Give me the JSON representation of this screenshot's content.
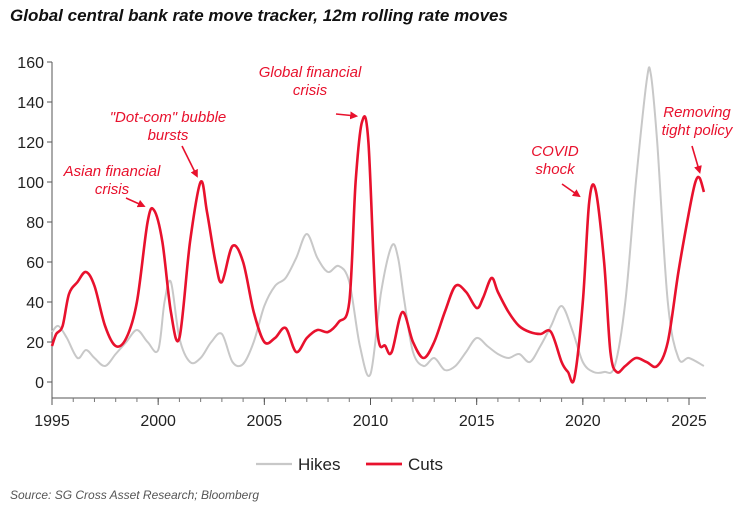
{
  "chart_data": {
    "type": "line",
    "title": "Global central bank rate move tracker, 12m rolling rate moves",
    "source": "Source: SG Cross Asset Research; Bloomberg",
    "xlabel": "",
    "ylabel": "",
    "xlim": [
      1995,
      2025.8
    ],
    "ylim": [
      -8,
      160
    ],
    "yticks": [
      0,
      20,
      40,
      60,
      80,
      100,
      120,
      140,
      160
    ],
    "xticks": [
      1995,
      2000,
      2005,
      2010,
      2015,
      2020,
      2025
    ],
    "grid": false,
    "legend_position": "bottom-center",
    "colors": {
      "hikes": "#c8c8c8",
      "cuts": "#e8112d",
      "annotation": "#e8112d"
    },
    "series": [
      {
        "name": "Hikes",
        "x": [
          1995,
          1995.3,
          1995.7,
          1996.2,
          1996.6,
          1997,
          1997.5,
          1998,
          1998.5,
          1999,
          1999.5,
          2000,
          2000.3,
          2000.6,
          2001,
          2001.5,
          2002,
          2002.5,
          2003,
          2003.5,
          2004,
          2004.5,
          2005,
          2005.5,
          2006,
          2006.5,
          2007,
          2007.5,
          2008,
          2008.5,
          2009,
          2009.5,
          2010,
          2010.5,
          2011,
          2011.3,
          2011.6,
          2012,
          2012.5,
          2013,
          2013.5,
          2014,
          2014.5,
          2015,
          2015.5,
          2016,
          2016.5,
          2017,
          2017.5,
          2018,
          2018.5,
          2019,
          2019.5,
          2020,
          2020.5,
          2021,
          2021.5,
          2022,
          2022.5,
          2023,
          2023.2,
          2023.5,
          2024,
          2024.5,
          2025,
          2025.7
        ],
        "values": [
          25,
          28,
          22,
          12,
          16,
          12,
          8,
          14,
          20,
          26,
          20,
          16,
          40,
          50,
          22,
          10,
          12,
          20,
          24,
          10,
          9,
          20,
          38,
          48,
          52,
          62,
          74,
          62,
          55,
          58,
          50,
          18,
          4,
          45,
          68,
          62,
          40,
          15,
          8,
          12,
          6,
          8,
          15,
          22,
          18,
          14,
          12,
          14,
          10,
          18,
          28,
          38,
          26,
          10,
          5,
          5,
          8,
          40,
          100,
          150,
          154,
          120,
          40,
          12,
          12,
          8
        ]
      },
      {
        "name": "Cuts",
        "x": [
          1995,
          1995.2,
          1995.5,
          1995.8,
          1996.2,
          1996.6,
          1997,
          1997.5,
          1998,
          1998.5,
          1999,
          1999.5,
          1999.8,
          2000.2,
          2000.6,
          2001,
          2001.5,
          2002,
          2002.3,
          2002.7,
          2003,
          2003.5,
          2004,
          2004.5,
          2005,
          2005.5,
          2006,
          2006.5,
          2007,
          2007.5,
          2008,
          2008.5,
          2009,
          2009.3,
          2009.6,
          2009.9,
          2010.3,
          2010.7,
          2011,
          2011.5,
          2012,
          2012.5,
          2013,
          2013.5,
          2014,
          2014.5,
          2015,
          2015.3,
          2015.7,
          2016,
          2016.5,
          2017,
          2017.5,
          2018,
          2018.5,
          2019,
          2019.3,
          2019.6,
          2020,
          2020.3,
          2020.6,
          2021,
          2021.3,
          2021.6,
          2022,
          2022.5,
          2023,
          2023.5,
          2024,
          2024.5,
          2025,
          2025.3,
          2025.5,
          2025.7
        ],
        "values": [
          18,
          24,
          28,
          44,
          50,
          55,
          48,
          28,
          18,
          22,
          40,
          80,
          86,
          70,
          35,
          22,
          70,
          100,
          85,
          60,
          50,
          68,
          60,
          35,
          20,
          22,
          27,
          15,
          22,
          26,
          25,
          30,
          40,
          100,
          130,
          120,
          28,
          18,
          15,
          35,
          20,
          12,
          20,
          35,
          48,
          45,
          37,
          42,
          52,
          45,
          35,
          28,
          25,
          24,
          25,
          10,
          5,
          2,
          40,
          90,
          96,
          60,
          15,
          5,
          8,
          12,
          10,
          8,
          20,
          55,
          85,
          100,
          102,
          95
        ]
      }
    ],
    "annotations": [
      {
        "lines": [
          "Asian financial",
          "crisis"
        ],
        "target": [
          1999.7,
          85
        ]
      },
      {
        "lines": [
          "\"Dot-com\" bubble",
          "bursts"
        ],
        "target": [
          2002.2,
          100
        ]
      },
      {
        "lines": [
          "Global financial",
          "crisis"
        ],
        "target": [
          2009.7,
          130
        ]
      },
      {
        "lines": [
          "COVID",
          "shock"
        ],
        "target": [
          2020.2,
          90
        ]
      },
      {
        "lines": [
          "Removing",
          "tight policy"
        ],
        "target": [
          2025.5,
          102
        ]
      }
    ]
  }
}
